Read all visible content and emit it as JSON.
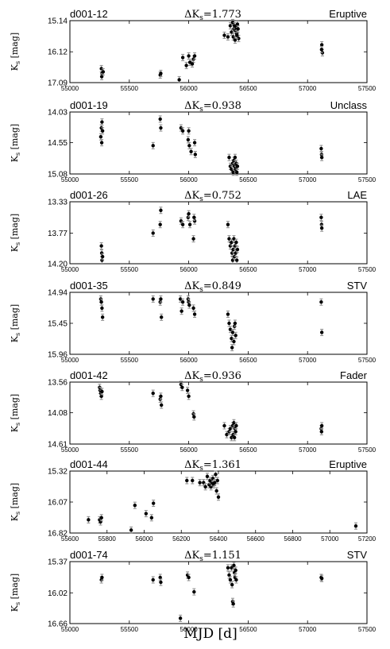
{
  "figure": {
    "xlabel": "MJD [d]",
    "ylabel": "K_s [mag]"
  },
  "chart_data": [
    {
      "type": "scatter",
      "name": "d001-12",
      "class": "Eruptive",
      "delta_label": "ΔK",
      "delta_sub": "s",
      "delta_value": "=1.773",
      "ylabel": "K_s [mag]",
      "y_inverted": true,
      "xlim": [
        55000,
        57500
      ],
      "xticks": [
        55000,
        55500,
        56000,
        56500,
        57000,
        57500
      ],
      "yticks": [
        "15.14",
        "16.12",
        "17.09"
      ],
      "ylim": [
        15.14,
        17.09
      ],
      "points": [
        [
          55265,
          16.65
        ],
        [
          55270,
          16.8
        ],
        [
          55268,
          16.9
        ],
        [
          55280,
          16.75
        ],
        [
          55760,
          16.85
        ],
        [
          55765,
          16.8
        ],
        [
          55920,
          17.0
        ],
        [
          55950,
          16.3
        ],
        [
          55980,
          16.55
        ],
        [
          56000,
          16.25
        ],
        [
          56010,
          16.45
        ],
        [
          56040,
          16.35
        ],
        [
          56050,
          16.25
        ],
        [
          56030,
          16.5
        ],
        [
          56300,
          15.6
        ],
        [
          56330,
          15.65
        ],
        [
          56350,
          15.3
        ],
        [
          56360,
          15.5
        ],
        [
          56370,
          15.2
        ],
        [
          56375,
          15.65
        ],
        [
          56380,
          15.4
        ],
        [
          56385,
          15.3
        ],
        [
          56390,
          15.75
        ],
        [
          56395,
          15.45
        ],
        [
          56400,
          15.35
        ],
        [
          56405,
          15.55
        ],
        [
          56410,
          15.25
        ],
        [
          56415,
          15.4
        ],
        [
          56420,
          15.7
        ],
        [
          56405,
          15.6
        ],
        [
          57120,
          15.9
        ],
        [
          57125,
          16.15
        ],
        [
          57118,
          16.05
        ]
      ]
    },
    {
      "type": "scatter",
      "name": "d001-19",
      "class": "Unclass",
      "delta_label": "ΔK",
      "delta_sub": "s",
      "delta_value": "=0.938",
      "ylabel": "K_s [mag]",
      "y_inverted": true,
      "xlim": [
        55000,
        57500
      ],
      "xticks": [
        55000,
        55500,
        56000,
        56500,
        57000,
        57500
      ],
      "yticks": [
        "14.03",
        "14.55",
        "15.08"
      ],
      "ylim": [
        14.03,
        15.08
      ],
      "points": [
        [
          55260,
          14.45
        ],
        [
          55265,
          14.3
        ],
        [
          55270,
          14.2
        ],
        [
          55275,
          14.35
        ],
        [
          55268,
          14.55
        ],
        [
          55700,
          14.6
        ],
        [
          55760,
          14.15
        ],
        [
          55765,
          14.3
        ],
        [
          55935,
          14.3
        ],
        [
          55950,
          14.35
        ],
        [
          55995,
          14.5
        ],
        [
          56000,
          14.35
        ],
        [
          56005,
          14.6
        ],
        [
          56020,
          14.7
        ],
        [
          56050,
          14.55
        ],
        [
          56055,
          14.75
        ],
        [
          56340,
          14.8
        ],
        [
          56350,
          14.95
        ],
        [
          56360,
          15.0
        ],
        [
          56370,
          14.9
        ],
        [
          56375,
          15.05
        ],
        [
          56380,
          14.85
        ],
        [
          56385,
          14.95
        ],
        [
          56390,
          14.8
        ],
        [
          56395,
          15.0
        ],
        [
          56400,
          14.9
        ],
        [
          56405,
          15.05
        ],
        [
          56410,
          14.95
        ],
        [
          57115,
          14.65
        ],
        [
          57118,
          14.75
        ],
        [
          57120,
          14.8
        ]
      ]
    },
    {
      "type": "scatter",
      "name": "d001-26",
      "class": "LAE",
      "delta_label": "ΔK",
      "delta_sub": "s",
      "delta_value": "=0.752",
      "ylabel": "K_s [mag]",
      "y_inverted": true,
      "xlim": [
        55000,
        57500
      ],
      "xticks": [
        55000,
        55500,
        56000,
        56500,
        57000,
        57500
      ],
      "yticks": [
        "13.33",
        "13.77",
        "14.20"
      ],
      "ylim": [
        13.33,
        14.2
      ],
      "points": [
        [
          55265,
          13.95
        ],
        [
          55268,
          14.05
        ],
        [
          55270,
          14.15
        ],
        [
          55275,
          14.1
        ],
        [
          55700,
          13.77
        ],
        [
          55760,
          13.65
        ],
        [
          55765,
          13.45
        ],
        [
          55935,
          13.6
        ],
        [
          55950,
          13.65
        ],
        [
          55995,
          13.55
        ],
        [
          56000,
          13.5
        ],
        [
          56010,
          13.65
        ],
        [
          56040,
          13.85
        ],
        [
          56050,
          13.6
        ],
        [
          56045,
          13.55
        ],
        [
          56330,
          13.65
        ],
        [
          56340,
          13.85
        ],
        [
          56350,
          13.95
        ],
        [
          56360,
          13.9
        ],
        [
          56365,
          14.05
        ],
        [
          56370,
          14.15
        ],
        [
          56375,
          14.0
        ],
        [
          56380,
          13.85
        ],
        [
          56385,
          14.1
        ],
        [
          56390,
          13.95
        ],
        [
          56395,
          14.05
        ],
        [
          56400,
          13.9
        ],
        [
          56405,
          14.15
        ],
        [
          56410,
          14.0
        ],
        [
          57115,
          13.55
        ],
        [
          57118,
          13.65
        ],
        [
          57120,
          13.7
        ]
      ]
    },
    {
      "type": "scatter",
      "name": "d001-35",
      "class": "STV",
      "delta_label": "ΔK",
      "delta_sub": "s",
      "delta_value": "=0.849",
      "ylabel": "K_s [mag]",
      "y_inverted": true,
      "xlim": [
        55000,
        57500
      ],
      "xticks": [
        55000,
        55500,
        56000,
        56500,
        57000,
        57500
      ],
      "yticks": [
        "14.94",
        "15.45",
        "15.96"
      ],
      "ylim": [
        14.94,
        15.96
      ],
      "points": [
        [
          55260,
          15.05
        ],
        [
          55265,
          15.1
        ],
        [
          55270,
          15.2
        ],
        [
          55275,
          15.35
        ],
        [
          55700,
          15.05
        ],
        [
          55760,
          15.1
        ],
        [
          55765,
          15.05
        ],
        [
          55770,
          15.35
        ],
        [
          55930,
          15.05
        ],
        [
          55940,
          15.25
        ],
        [
          55950,
          15.1
        ],
        [
          55995,
          15.05
        ],
        [
          56000,
          15.1
        ],
        [
          56005,
          15.15
        ],
        [
          56040,
          15.2
        ],
        [
          56050,
          15.3
        ],
        [
          56330,
          15.3
        ],
        [
          56340,
          15.45
        ],
        [
          56350,
          15.55
        ],
        [
          56360,
          15.7
        ],
        [
          56365,
          15.85
        ],
        [
          56370,
          15.6
        ],
        [
          56380,
          15.75
        ],
        [
          56385,
          15.5
        ],
        [
          56390,
          15.45
        ],
        [
          56395,
          15.65
        ],
        [
          57115,
          15.1
        ],
        [
          57120,
          15.6
        ]
      ]
    },
    {
      "type": "scatter",
      "name": "d001-42",
      "class": "Fader",
      "delta_label": "ΔK",
      "delta_sub": "s",
      "delta_value": "=0.936",
      "ylabel": "K_s [mag]",
      "y_inverted": true,
      "xlim": [
        55000,
        57500
      ],
      "xticks": [
        55000,
        55500,
        56000,
        56500,
        57000,
        57500
      ],
      "yticks": [
        "13.56",
        "14.08",
        "14.61"
      ],
      "ylim": [
        13.56,
        14.61
      ],
      "points": [
        [
          55250,
          13.65
        ],
        [
          55255,
          13.7
        ],
        [
          55260,
          13.75
        ],
        [
          55265,
          13.8
        ],
        [
          55270,
          13.72
        ],
        [
          55700,
          13.75
        ],
        [
          55760,
          13.85
        ],
        [
          55765,
          13.8
        ],
        [
          55770,
          13.95
        ],
        [
          55935,
          13.6
        ],
        [
          55945,
          13.65
        ],
        [
          55990,
          13.7
        ],
        [
          56000,
          13.8
        ],
        [
          56040,
          14.1
        ],
        [
          56045,
          14.15
        ],
        [
          56300,
          14.3
        ],
        [
          56320,
          14.45
        ],
        [
          56340,
          14.4
        ],
        [
          56350,
          14.35
        ],
        [
          56360,
          14.5
        ],
        [
          56370,
          14.3
        ],
        [
          56375,
          14.45
        ],
        [
          56380,
          14.25
        ],
        [
          56385,
          14.5
        ],
        [
          56390,
          14.35
        ],
        [
          56395,
          14.4
        ],
        [
          56400,
          14.3
        ],
        [
          57115,
          14.35
        ],
        [
          57118,
          14.4
        ],
        [
          57120,
          14.3
        ]
      ]
    },
    {
      "type": "scatter",
      "name": "d001-44",
      "class": "Eruptive",
      "delta_label": "ΔK",
      "delta_sub": "s",
      "delta_value": "=1.361",
      "ylabel": "K_s [mag]",
      "y_inverted": true,
      "xlim": [
        55600,
        57200
      ],
      "xticks": [
        55600,
        55800,
        56000,
        56200,
        56400,
        56600,
        56800,
        57000,
        57200
      ],
      "yticks": [
        "15.32",
        "16.07",
        "16.82"
      ],
      "ylim": [
        15.32,
        16.82
      ],
      "points": [
        [
          55700,
          16.5
        ],
        [
          55760,
          16.5
        ],
        [
          55765,
          16.55
        ],
        [
          55770,
          16.45
        ],
        [
          55930,
          16.75
        ],
        [
          55950,
          16.15
        ],
        [
          56010,
          16.35
        ],
        [
          56040,
          16.45
        ],
        [
          56050,
          16.1
        ],
        [
          56230,
          15.55
        ],
        [
          56260,
          15.55
        ],
        [
          56300,
          15.6
        ],
        [
          56320,
          15.6
        ],
        [
          56330,
          15.7
        ],
        [
          56340,
          15.45
        ],
        [
          56350,
          15.65
        ],
        [
          56355,
          15.55
        ],
        [
          56360,
          15.7
        ],
        [
          56365,
          15.6
        ],
        [
          56370,
          15.5
        ],
        [
          56375,
          15.65
        ],
        [
          56380,
          15.6
        ],
        [
          56385,
          15.4
        ],
        [
          56390,
          15.8
        ],
        [
          56395,
          15.55
        ],
        [
          56400,
          15.95
        ],
        [
          57140,
          16.65
        ]
      ]
    },
    {
      "type": "scatter",
      "name": "d001-74",
      "class": "STV",
      "delta_label": "ΔK",
      "delta_sub": "s",
      "delta_value": "=1.151",
      "ylabel": "K_s [mag]",
      "y_inverted": true,
      "xlim": [
        55000,
        57500
      ],
      "xticks": [
        55000,
        55500,
        56000,
        56500,
        57000,
        57500
      ],
      "yticks": [
        "15.37",
        "16.02",
        "16.66"
      ],
      "ylim": [
        15.37,
        16.66
      ],
      "points": [
        [
          55265,
          15.75
        ],
        [
          55270,
          15.7
        ],
        [
          55700,
          15.75
        ],
        [
          55760,
          15.7
        ],
        [
          55765,
          15.8
        ],
        [
          55930,
          16.55
        ],
        [
          55990,
          15.65
        ],
        [
          56000,
          15.7
        ],
        [
          56045,
          16.0
        ],
        [
          56330,
          15.5
        ],
        [
          56340,
          15.65
        ],
        [
          56350,
          15.75
        ],
        [
          56360,
          15.5
        ],
        [
          56365,
          15.85
        ],
        [
          56370,
          16.2
        ],
        [
          56375,
          16.25
        ],
        [
          56380,
          15.45
        ],
        [
          56385,
          15.6
        ],
        [
          56390,
          15.7
        ],
        [
          56395,
          15.55
        ],
        [
          56400,
          15.75
        ],
        [
          57115,
          15.7
        ],
        [
          57120,
          15.72
        ]
      ]
    }
  ]
}
